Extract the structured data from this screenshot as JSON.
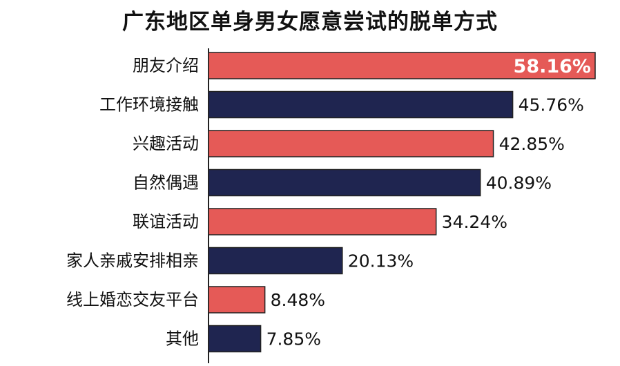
{
  "chart_data": {
    "type": "bar",
    "orientation": "horizontal",
    "title": "广东地区单身男女愿意尝试的脱单方式",
    "categories": [
      "朋友介绍",
      "工作环境接触",
      "兴趣活动",
      "自然偶遇",
      "联谊活动",
      "家人亲戚安排相亲",
      "线上婚恋交友平台",
      "其他"
    ],
    "values": [
      58.16,
      45.76,
      42.85,
      40.89,
      34.24,
      20.13,
      8.48,
      7.85
    ],
    "value_labels": [
      "58.16%",
      "45.76%",
      "42.85%",
      "40.89%",
      "34.24%",
      "20.13%",
      "8.48%",
      "7.85%"
    ],
    "xlim": [
      0,
      58.16
    ],
    "grid": false,
    "colors": {
      "odd_bars": "#e55a57",
      "even_bars": "#1f2550",
      "axis": "#222222",
      "bar_border": "#222222"
    }
  }
}
